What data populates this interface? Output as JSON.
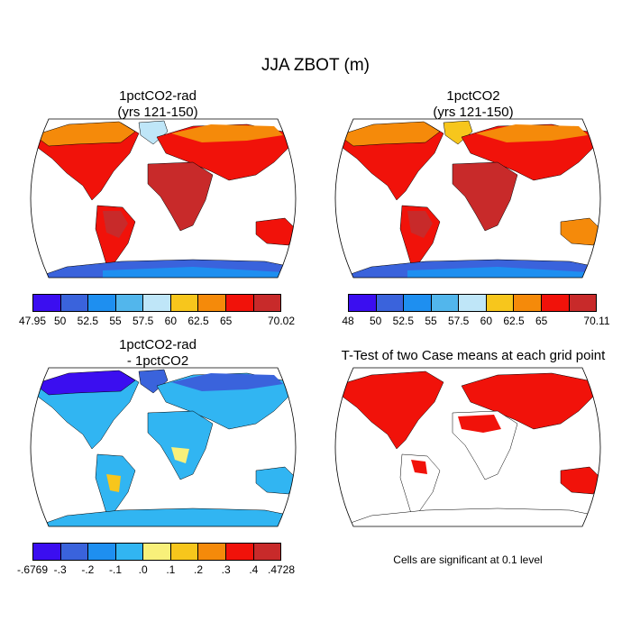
{
  "title": "JJA ZBOT (m)",
  "panels": {
    "top_left": {
      "title_line1": "1pctCO2-rad",
      "title_line2": "(yrs 121-150)"
    },
    "top_right": {
      "title_line1": "1pctCO2",
      "title_line2": "(yrs 121-150)"
    },
    "bottom_left": {
      "title_line1": "1pctCO2-rad",
      "title_line2": "- 1pctCO2"
    },
    "bottom_right": {
      "title_line1": "T-Test of two Case means at each grid point"
    }
  },
  "colorbars": {
    "top_left": {
      "colors": [
        "#3b0ef0",
        "#3a63dc",
        "#1e8ff0",
        "#52b6ec",
        "#bfe6f8",
        "#f7c61c",
        "#f58a0a",
        "#f1120a",
        "#c82a2a"
      ],
      "labels": [
        "47.95",
        "50",
        "52.5",
        "55",
        "57.5",
        "60",
        "62.5",
        "65",
        "70.02"
      ]
    },
    "top_right": {
      "colors": [
        "#3b0ef0",
        "#3a63dc",
        "#1e8ff0",
        "#52b6ec",
        "#bfe6f8",
        "#f7c61c",
        "#f58a0a",
        "#f1120a",
        "#c82a2a"
      ],
      "labels": [
        "48",
        "50",
        "52.5",
        "55",
        "57.5",
        "60",
        "62.5",
        "65",
        "70.11"
      ]
    },
    "bottom_left": {
      "colors": [
        "#3b0ef0",
        "#3a63dc",
        "#1e8ff0",
        "#31b5f2",
        "#f8f07a",
        "#f7c61c",
        "#f58a0a",
        "#f1120a",
        "#c82a2a"
      ],
      "labels": [
        "-.6769",
        "-.3",
        "-.2",
        "-.1",
        ".0",
        ".1",
        ".2",
        ".3",
        ".4",
        ".4728"
      ]
    }
  },
  "significance_note": "Cells are significant at 0.1 level"
}
